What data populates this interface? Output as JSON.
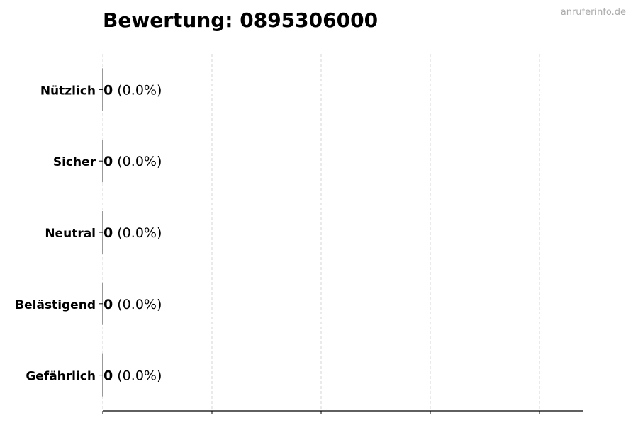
{
  "chart_data": {
    "type": "bar",
    "orientation": "horizontal",
    "title": "Bewertung: 0895306000",
    "watermark": "anruferinfo.de",
    "categories": [
      "Nützlich",
      "Sicher",
      "Neutral",
      "Belästigend",
      "Gefährlich"
    ],
    "values": [
      0,
      0,
      0,
      0,
      0
    ],
    "data_labels": [
      {
        "count": "0",
        "percent": "(0.0%)"
      },
      {
        "count": "0",
        "percent": "(0.0%)"
      },
      {
        "count": "0",
        "percent": "(0.0%)"
      },
      {
        "count": "0",
        "percent": "(0.0%)"
      },
      {
        "count": "0",
        "percent": "(0.0%)"
      }
    ],
    "xlabel": "",
    "ylabel": "",
    "xlim": [
      0,
      4.4
    ],
    "x_ticks": [
      0,
      1,
      2,
      3,
      4
    ],
    "x_tick_labels_visible": false,
    "grid": "x-dashed",
    "grid_color": "#cccccc",
    "bar_edge_color": "#333333"
  }
}
